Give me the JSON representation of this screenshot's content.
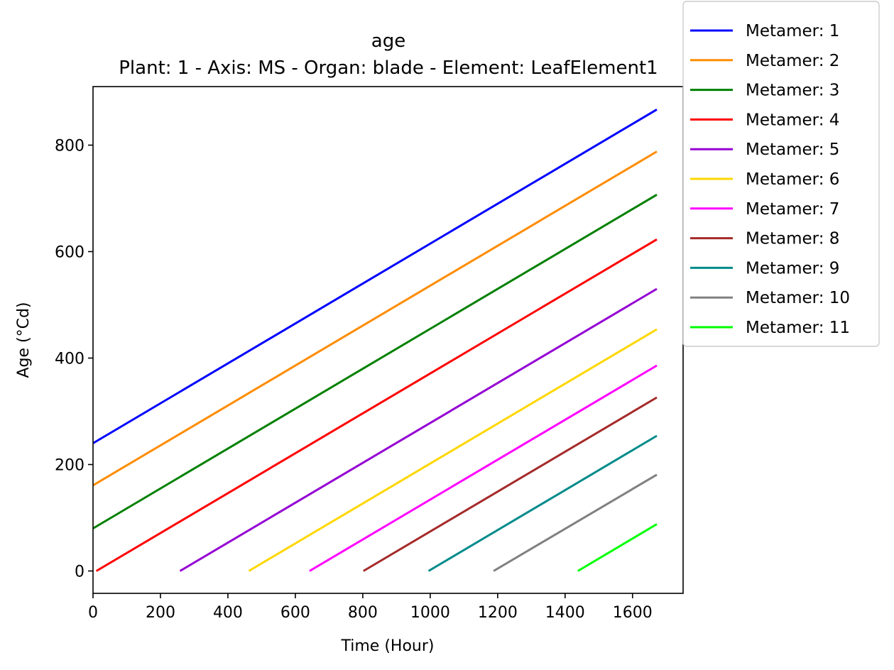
{
  "chart_data": {
    "type": "line",
    "title": "age",
    "subtitle": "Plant: 1 - Axis: MS - Organ: blade - Element: LeafElement1",
    "xlabel": "Time (Hour)",
    "ylabel": "Age (°Cd)",
    "xlim": [
      0,
      1750
    ],
    "ylim": [
      -42,
      910
    ],
    "xticks": [
      0,
      200,
      400,
      600,
      800,
      1000,
      1200,
      1400,
      1600
    ],
    "yticks": [
      0,
      200,
      400,
      600,
      800
    ],
    "grid": false,
    "legend_position": "top-right, outside plot",
    "series": [
      {
        "name": "Metamer: 1",
        "color": "#0000ff",
        "x": [
          0,
          1672
        ],
        "y": [
          240,
          867
        ]
      },
      {
        "name": "Metamer: 2",
        "color": "#ff8c00",
        "x": [
          0,
          1672
        ],
        "y": [
          161,
          788
        ]
      },
      {
        "name": "Metamer: 3",
        "color": "#008000",
        "x": [
          0,
          1672
        ],
        "y": [
          80,
          707
        ]
      },
      {
        "name": "Metamer: 4",
        "color": "#ff0000",
        "x": [
          10,
          1672
        ],
        "y": [
          0,
          623
        ]
      },
      {
        "name": "Metamer: 5",
        "color": "#9400d3",
        "x": [
          258,
          1672
        ],
        "y": [
          0,
          530
        ]
      },
      {
        "name": "Metamer: 6",
        "color": "#ffd700",
        "x": [
          462,
          1672
        ],
        "y": [
          0,
          454
        ]
      },
      {
        "name": "Metamer: 7",
        "color": "#ff00ff",
        "x": [
          642,
          1672
        ],
        "y": [
          0,
          386
        ]
      },
      {
        "name": "Metamer: 8",
        "color": "#a52a2a",
        "x": [
          802,
          1672
        ],
        "y": [
          0,
          326
        ]
      },
      {
        "name": "Metamer: 9",
        "color": "#008b8b",
        "x": [
          995,
          1672
        ],
        "y": [
          0,
          254
        ]
      },
      {
        "name": "Metamer: 10",
        "color": "#808080",
        "x": [
          1188,
          1672
        ],
        "y": [
          0,
          181
        ]
      },
      {
        "name": "Metamer: 11",
        "color": "#00ff00",
        "x": [
          1438,
          1672
        ],
        "y": [
          0,
          88
        ]
      }
    ]
  }
}
